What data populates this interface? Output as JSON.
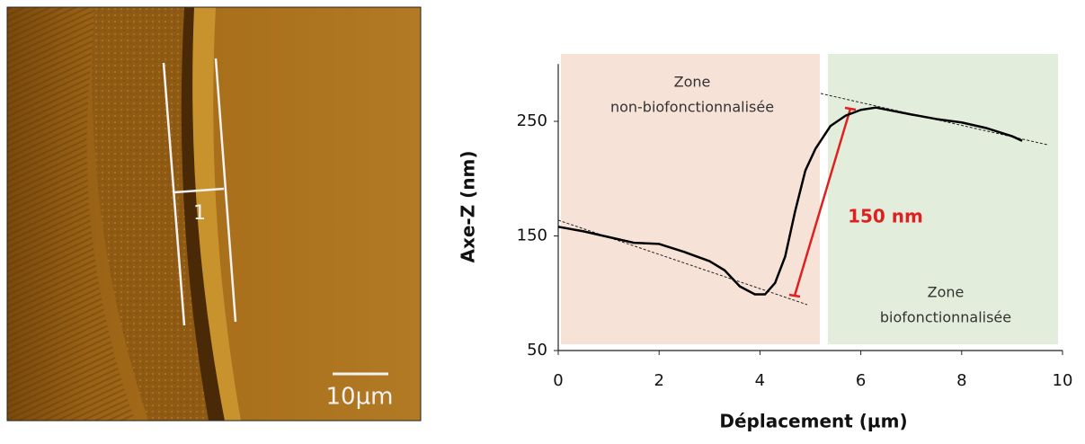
{
  "image": {
    "profile_label": "1",
    "scale_bar": "10µm"
  },
  "chart_data": {
    "type": "line",
    "xlabel": "Déplacement (µm)",
    "ylabel": "Axe-Z (nm)",
    "x": [
      0,
      0.5,
      1,
      1.5,
      2,
      2.5,
      3,
      3.3,
      3.6,
      3.9,
      4.1,
      4.3,
      4.5,
      4.7,
      4.9,
      5.1,
      5.4,
      5.7,
      6,
      6.3,
      7,
      7.5,
      8,
      8.5,
      9,
      9.2
    ],
    "series": [
      {
        "name": "profile",
        "color": "#000000",
        "values": [
          158,
          154,
          149,
          144,
          143,
          136,
          128,
          120,
          106,
          99,
          99,
          109,
          132,
          172,
          207,
          226,
          246,
          255,
          260,
          262,
          256,
          252,
          249,
          244,
          237,
          233
        ]
      }
    ],
    "xlim": [
      0,
      10
    ],
    "xticks": [
      0,
      2,
      4,
      6,
      8,
      10
    ],
    "ylim": [
      50,
      300
    ],
    "yticks": [
      50,
      150,
      250
    ],
    "annotations": {
      "height": "150 nm",
      "zone_left": [
        "Zone",
        "non-biofonctionnalisée"
      ],
      "zone_right": [
        "Zone",
        "biofonctionnalisée"
      ]
    }
  }
}
